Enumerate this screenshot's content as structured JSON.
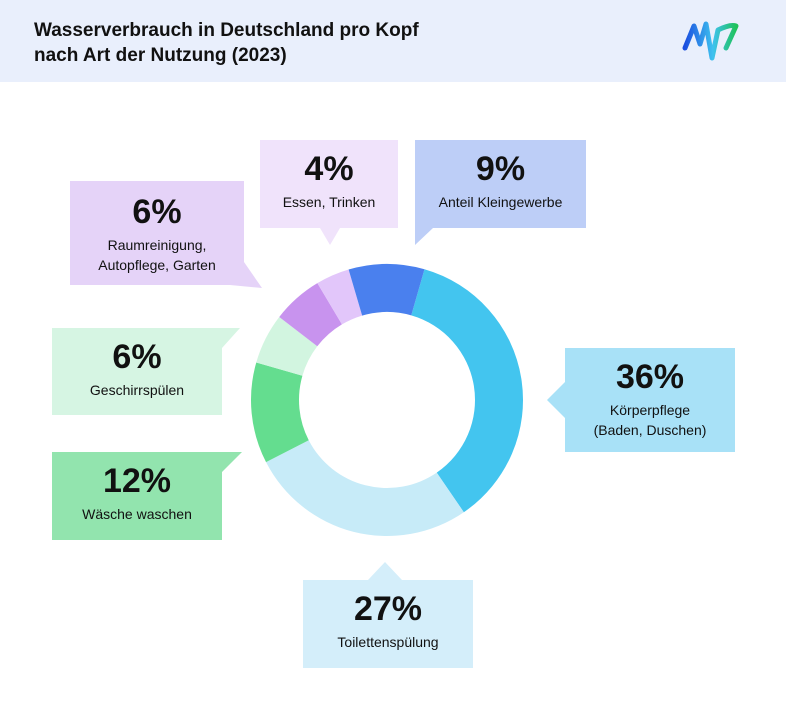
{
  "header": {
    "title_line1": "Wasserverbrauch in Deutschland pro Kopf",
    "title_line2": "nach Art der Nutzung (2023)"
  },
  "chart_data": {
    "type": "pie",
    "donut": true,
    "title": "Wasserverbrauch in Deutschland pro Kopf nach Art der Nutzung (2023)",
    "unit": "%",
    "slices": [
      {
        "label": "Körperpflege (Baden, Duschen)",
        "line1": "Körperpflege",
        "line2": "(Baden, Duschen)",
        "value": 36,
        "pct_label": "36%",
        "color": "#43c5ef",
        "box_color": "#a8e1f7"
      },
      {
        "label": "Toilettenspülung",
        "line1": "Toilettenspülung",
        "line2": "",
        "value": 27,
        "pct_label": "27%",
        "color": "#c7ebf8",
        "box_color": "#d4eefa"
      },
      {
        "label": "Wäsche waschen",
        "line1": "Wäsche waschen",
        "line2": "",
        "value": 12,
        "pct_label": "12%",
        "color": "#64dd8f",
        "box_color": "#92e4ae"
      },
      {
        "label": "Geschirrspülen",
        "line1": "Geschirrspülen",
        "line2": "",
        "value": 6,
        "pct_label": "6%",
        "color": "#d2f5e0",
        "box_color": "#d6f5e3"
      },
      {
        "label": "Raumreinigung, Autopflege, Garten",
        "line1": "Raumreinigung,",
        "line2": "Autopflege, Garten",
        "value": 6,
        "pct_label": "6%",
        "color": "#c893ee",
        "box_color": "#e5d3f8"
      },
      {
        "label": "Essen, Trinken",
        "line1": "Essen, Trinken",
        "line2": "",
        "value": 4,
        "pct_label": "4%",
        "color": "#e2c6fa",
        "box_color": "#f0e3fb"
      },
      {
        "label": "Anteil Kleingewerbe",
        "line1": "Anteil Kleingewerbe",
        "line2": "",
        "value": 9,
        "pct_label": "9%",
        "color": "#4a80ee",
        "box_color": "#bdcef7"
      }
    ]
  }
}
